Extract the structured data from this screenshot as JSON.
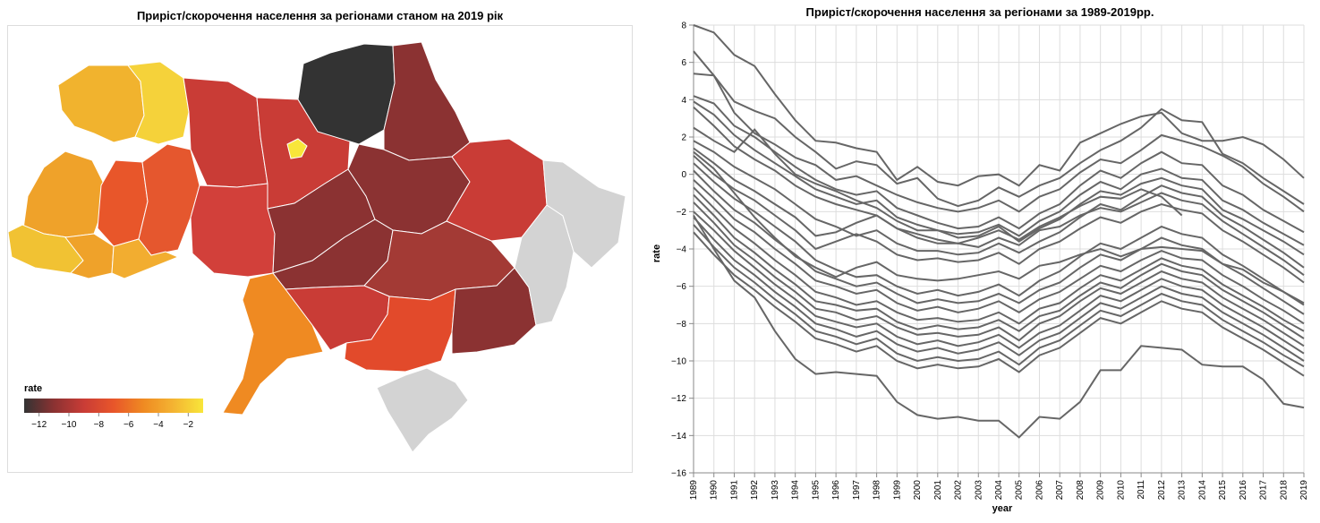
{
  "map": {
    "title": "Приріст/скорочення населення за регіонами станом на 2019 рік",
    "legend": {
      "title": "rate",
      "ticks": [
        "−12",
        "−10",
        "−8",
        "−6",
        "−4",
        "−2"
      ],
      "domain": [
        -13,
        -1
      ]
    },
    "no_data_color": "#d3d3d3",
    "colors": {
      "scale_stops": [
        "#333333",
        "#8b3232",
        "#c93c36",
        "#e8562a",
        "#ef8a22",
        "#f4b432",
        "#f8e63a"
      ]
    }
  },
  "chart_data": {
    "type": "line",
    "title": "Приріст/скорочення населення за регіонами за 1989-2019рр.",
    "xlabel": "year",
    "ylabel": "rate",
    "ylim": [
      -16,
      8
    ],
    "yticks": [
      8,
      6,
      4,
      2,
      0,
      -2,
      -4,
      -6,
      -8,
      -10,
      -12,
      -14,
      -16
    ],
    "grid": true,
    "line_color": "#666666",
    "x": [
      1989,
      1990,
      1991,
      1992,
      1993,
      1994,
      1995,
      1996,
      1997,
      1998,
      1999,
      2000,
      2001,
      2002,
      2003,
      2004,
      2005,
      2006,
      2007,
      2008,
      2009,
      2010,
      2011,
      2012,
      2013,
      2014,
      2015,
      2016,
      2017,
      2018,
      2019
    ],
    "series": [
      {
        "values": [
          8.0,
          7.6,
          6.4,
          5.8,
          4.3,
          2.9,
          1.8,
          1.7,
          1.4,
          1.2,
          -0.3,
          0.4,
          -0.4,
          -0.6,
          -0.1,
          0.0,
          -0.6,
          0.5,
          0.2,
          1.7,
          2.2,
          2.7,
          3.1,
          3.3,
          2.2,
          1.8,
          1.8,
          2.0,
          1.6,
          0.8,
          -0.2
        ]
      },
      {
        "values": [
          6.6,
          5.3,
          3.9,
          3.4,
          3.0,
          2.0,
          1.2,
          0.3,
          0.7,
          0.5,
          -0.5,
          -0.2,
          -1.3,
          -1.7,
          -1.4,
          -0.7,
          -1.2,
          -0.6,
          -0.2,
          0.6,
          1.3,
          1.8,
          2.5,
          3.5,
          2.9,
          2.8,
          1.1,
          0.6,
          -0.2,
          -0.9,
          -1.6
        ]
      },
      {
        "values": [
          5.4,
          5.3,
          3.3,
          2.2,
          1.6,
          0.9,
          0.5,
          -0.3,
          -0.1,
          -0.6,
          -1.1,
          -1.5,
          -1.8,
          -2.0,
          -1.8,
          -1.4,
          -2.0,
          -1.2,
          -0.8,
          0.1,
          0.8,
          0.6,
          1.3,
          2.1,
          1.8,
          1.5,
          1.0,
          0.4,
          -0.5,
          -1.2,
          -2.0
        ]
      },
      {
        "values": [
          4.2,
          3.8,
          2.6,
          2.0,
          1.2,
          0.4,
          -0.3,
          -0.8,
          -1.1,
          -0.9,
          -1.8,
          -2.2,
          -2.6,
          -2.9,
          -2.8,
          -2.3,
          -2.9,
          -2.1,
          -1.6,
          -0.6,
          0.2,
          -0.2,
          0.6,
          1.2,
          0.6,
          0.5,
          -0.6,
          -1.1,
          -1.9,
          -2.5,
          -3.1
        ]
      },
      {
        "values": [
          3.9,
          3.2,
          2.1,
          1.3,
          0.6,
          -0.1,
          -0.8,
          -1.2,
          -1.6,
          -1.4,
          -2.3,
          -2.7,
          -3.0,
          -3.2,
          -3.1,
          -2.7,
          -3.3,
          -2.5,
          -2.0,
          -1.1,
          -0.4,
          -0.8,
          0.0,
          0.3,
          -0.2,
          -0.3,
          -1.4,
          -1.9,
          -2.6,
          -3.2,
          -3.8
        ]
      },
      {
        "values": [
          2.5,
          1.8,
          1.2,
          2.4,
          1.1,
          0.0,
          -0.5,
          -0.9,
          -1.4,
          -1.8,
          -2.5,
          -3.0,
          -3.0,
          -3.4,
          -3.3,
          -2.8,
          -3.6,
          -2.9,
          -2.4,
          -1.6,
          -0.9,
          -1.1,
          -0.5,
          -0.2,
          -0.6,
          -0.8,
          -1.9,
          -2.4,
          -3.0,
          -3.6,
          -4.3
        ]
      },
      {
        "values": [
          1.8,
          1.2,
          0.4,
          -0.2,
          -0.8,
          -1.6,
          -2.4,
          -2.8,
          -3.3,
          -3.0,
          -3.7,
          -4.1,
          -4.1,
          -4.3,
          -4.2,
          -3.7,
          -4.2,
          -3.6,
          -3.1,
          -2.3,
          -1.6,
          -1.9,
          -1.2,
          -0.6,
          -1.0,
          -1.2,
          -2.2,
          -2.8,
          -3.5,
          -4.2,
          -5.0
        ]
      },
      {
        "values": [
          1.4,
          0.6,
          -0.3,
          -0.9,
          -1.6,
          -2.3,
          -3.3,
          -3.1,
          -2.6,
          -2.2,
          -2.9,
          -3.2,
          -3.5,
          -3.7,
          -3.4,
          -3.0,
          -3.5,
          -2.8,
          -2.3,
          -1.7,
          -1.2,
          -1.3,
          -0.8,
          -1.2,
          -2.2,
          null,
          null,
          null,
          null,
          null,
          null
        ]
      },
      {
        "values": [
          1.0,
          0.0,
          -0.8,
          -1.4,
          -2.2,
          -3.0,
          -4.0,
          -3.6,
          -3.2,
          -3.6,
          -4.3,
          -4.6,
          -4.5,
          -4.7,
          -4.6,
          -4.2,
          -4.8,
          -4.0,
          -3.6,
          -2.9,
          -2.3,
          -2.6,
          -2.0,
          -1.6,
          -1.9,
          -2.1,
          -3.0,
          -3.6,
          -4.3,
          -5.0,
          -5.8
        ]
      },
      {
        "values": [
          0.6,
          -0.4,
          -1.3,
          -2.0,
          -2.8,
          -3.6,
          -4.6,
          -5.1,
          -5.5,
          -5.4,
          -6.0,
          -6.4,
          -6.2,
          -6.5,
          -6.3,
          -5.9,
          -6.5,
          -5.7,
          -5.2,
          -4.4,
          -3.7,
          -4.0,
          -3.4,
          -2.8,
          -3.2,
          -3.4,
          -4.3,
          -4.9,
          -5.6,
          -6.3,
          -7.0
        ]
      },
      {
        "values": [
          0.2,
          -0.9,
          -1.9,
          -2.6,
          -3.5,
          -4.3,
          -5.2,
          -5.6,
          -6.0,
          -5.8,
          -6.4,
          -6.9,
          -6.7,
          -6.9,
          -6.8,
          -6.4,
          -6.9,
          -6.2,
          -5.8,
          -5.0,
          -4.3,
          -4.6,
          -4.0,
          -3.4,
          -3.8,
          -4.0,
          -4.8,
          -5.4,
          -6.1,
          -6.8,
          -7.5
        ]
      },
      {
        "values": [
          -0.3,
          -1.3,
          -2.4,
          -3.1,
          -4.0,
          -4.8,
          -5.7,
          -6.0,
          -6.4,
          -6.2,
          -6.9,
          -7.3,
          -7.1,
          -7.4,
          -7.2,
          -6.8,
          -7.4,
          -6.7,
          -6.3,
          -5.6,
          -4.9,
          -5.2,
          -4.6,
          -4.1,
          -4.5,
          -4.6,
          -5.4,
          -6.0,
          -6.7,
          -7.3,
          -8.0
        ]
      },
      {
        "values": [
          -0.7,
          -1.8,
          -2.9,
          -3.7,
          -4.6,
          -5.4,
          -6.3,
          -6.6,
          -7.0,
          -6.8,
          -7.4,
          -7.8,
          -7.7,
          -7.9,
          -7.8,
          -7.4,
          -8.0,
          -7.2,
          -6.9,
          -6.1,
          -5.4,
          -5.7,
          -5.1,
          -4.5,
          -4.9,
          -5.1,
          -5.9,
          -6.5,
          -7.1,
          -7.8,
          -8.4
        ]
      },
      {
        "values": [
          -1.1,
          -2.2,
          -3.4,
          -4.2,
          -5.1,
          -5.9,
          -6.8,
          -7.0,
          -7.3,
          -7.2,
          -7.9,
          -8.3,
          -8.1,
          -8.3,
          -8.2,
          -7.8,
          -8.4,
          -7.6,
          -7.3,
          -6.5,
          -5.8,
          -6.1,
          -5.4,
          -4.8,
          -5.2,
          -5.4,
          -6.2,
          -6.8,
          -7.4,
          -8.1,
          -8.8
        ]
      },
      {
        "values": [
          -1.5,
          -2.6,
          -3.8,
          -4.6,
          -5.5,
          -6.3,
          -7.2,
          -7.4,
          -7.8,
          -7.6,
          -8.2,
          -8.6,
          -8.5,
          -8.7,
          -8.6,
          -8.2,
          -8.9,
          -8.0,
          -7.6,
          -6.8,
          -6.1,
          -6.4,
          -5.8,
          -5.2,
          -5.6,
          -5.8,
          -6.6,
          -7.2,
          -7.8,
          -8.5,
          -9.2
        ]
      },
      {
        "values": [
          -2.0,
          -3.0,
          -4.1,
          -5.0,
          -5.9,
          -6.7,
          -7.6,
          -7.9,
          -8.2,
          -8.0,
          -8.7,
          -9.1,
          -8.9,
          -9.2,
          -9.0,
          -8.6,
          -9.3,
          -8.5,
          -8.1,
          -7.3,
          -6.5,
          -6.8,
          -6.2,
          -5.6,
          -6.0,
          -6.2,
          -7.0,
          -7.6,
          -8.2,
          -8.9,
          -9.6
        ]
      },
      {
        "values": [
          -2.3,
          -3.5,
          -4.6,
          -5.4,
          -6.3,
          -7.1,
          -8.0,
          -8.3,
          -8.7,
          -8.4,
          -9.1,
          -9.5,
          -9.3,
          -9.6,
          -9.4,
          -9.0,
          -9.7,
          -8.9,
          -8.5,
          -7.7,
          -6.9,
          -7.2,
          -6.6,
          -6.0,
          -6.4,
          -6.6,
          -7.4,
          -8.0,
          -8.6,
          -9.3,
          -10.0
        ]
      },
      {
        "values": [
          -2.7,
          -3.9,
          -5.0,
          -5.8,
          -6.7,
          -7.5,
          -8.4,
          -8.7,
          -9.1,
          -8.8,
          -9.6,
          -10.0,
          -9.8,
          -10.0,
          -9.9,
          -9.5,
          -10.2,
          -9.3,
          -8.9,
          -8.1,
          -7.3,
          -7.6,
          -7.0,
          -6.4,
          -6.8,
          -7.0,
          -7.8,
          -8.4,
          -9.0,
          -9.7,
          -10.3
        ]
      },
      {
        "values": [
          -3.1,
          -4.3,
          -5.4,
          -6.2,
          -7.1,
          -7.9,
          -8.8,
          -9.1,
          -9.5,
          -9.2,
          -10.0,
          -10.4,
          -10.2,
          -10.4,
          -10.3,
          -9.9,
          -10.6,
          -9.7,
          -9.3,
          -8.5,
          -7.7,
          -8.0,
          -7.4,
          -6.8,
          -7.2,
          -7.4,
          -8.2,
          -8.8,
          -9.4,
          -10.1,
          -10.8
        ]
      },
      {
        "values": [
          -2.2,
          -4.0,
          -5.7,
          -6.6,
          -8.4,
          -9.9,
          -10.7,
          -10.6,
          -10.7,
          -10.8,
          -12.2,
          -12.9,
          -13.1,
          -13.0,
          -13.2,
          -13.2,
          -14.1,
          -13.0,
          -13.1,
          -12.2,
          -10.5,
          -10.5,
          -9.2,
          -9.3,
          -9.4,
          -10.2,
          -10.3,
          -10.3,
          -11.0,
          -12.3,
          -12.5
        ]
      },
      {
        "values": [
          1.2,
          0.3,
          -1.0,
          -2.3,
          -3.4,
          -4.4,
          -5.0,
          -5.5,
          -5.0,
          -4.7,
          -5.4,
          -5.6,
          -5.7,
          -5.6,
          -5.4,
          -5.2,
          -5.6,
          -4.9,
          -4.7,
          -4.3,
          -4.0,
          -4.4,
          -4.0,
          -3.9,
          -4.0,
          -4.1,
          -4.8,
          -5.1,
          -5.8,
          -6.3,
          -6.9
        ]
      },
      {
        "values": [
          3.6,
          2.6,
          1.5,
          0.8,
          0.2,
          -0.6,
          -1.2,
          -1.6,
          -1.9,
          -2.2,
          -2.9,
          -3.4,
          -3.7,
          -3.7,
          -3.9,
          -3.4,
          -3.8,
          -3.0,
          -2.8,
          -2.2,
          -1.8,
          -2.0,
          -1.5,
          -1.0,
          -1.4,
          -1.6,
          -2.5,
          -3.2,
          -3.9,
          -4.6,
          -5.4
        ]
      }
    ]
  }
}
